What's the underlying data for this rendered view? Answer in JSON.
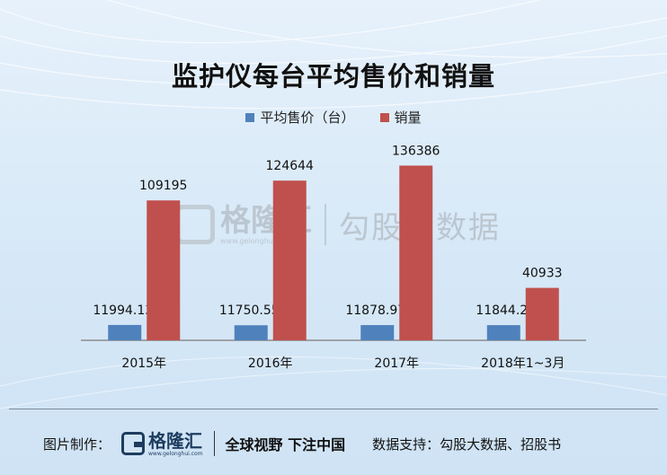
{
  "colors": {
    "series_price": "#4f81bd",
    "series_volume": "#c0504d",
    "axis": "#8c8c8c"
  },
  "watermark": {
    "brand": "格隆汇",
    "url": "www.gelonghui.com",
    "product": "勾股大数据"
  },
  "footer": {
    "made_by_label": "图片制作：",
    "brand": "格隆汇",
    "url": "www.gelonghui.com",
    "slogan": "全球视野 下注中国",
    "source": "数据支持：勾股大数据、招股书"
  },
  "chart_data": {
    "type": "bar",
    "title": "监护仪每台平均售价和销量",
    "categories": [
      "2015年",
      "2016年",
      "2017年",
      "2018年1~3月"
    ],
    "series": [
      {
        "name": "平均售价（台）",
        "values": [
          11994.13,
          11750.55,
          11878.97,
          11844.2
        ],
        "labels": [
          "11994.13",
          "11750.55",
          "11878.97",
          "11844.2"
        ]
      },
      {
        "name": "销量",
        "values": [
          109195,
          124644,
          136386,
          40933
        ],
        "labels": [
          "109195",
          "124644",
          "136386",
          "40933"
        ]
      }
    ],
    "ylim": [
      0,
      150000
    ],
    "grid": false,
    "legend_position": "top-center"
  }
}
